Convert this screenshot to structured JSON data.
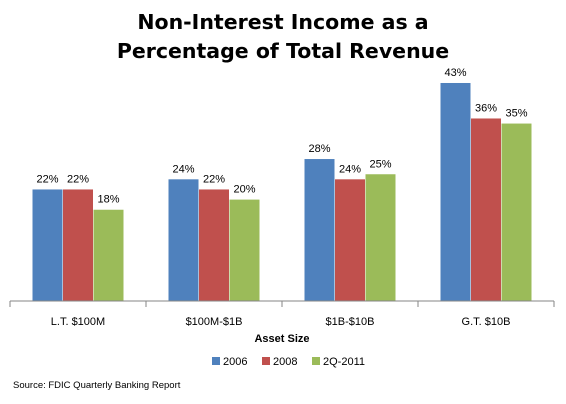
{
  "chart_data": {
    "type": "bar",
    "title_lines": [
      "Non-Interest Income as a",
      "Percentage of Total Revenue"
    ],
    "xlabel": "Asset Size",
    "ylabel": "",
    "categories": [
      "L.T. $100M",
      "$100M-$1B",
      "$1B-$10B",
      "G.T. $10B"
    ],
    "series": [
      {
        "name": "2006",
        "values": [
          22,
          24,
          28,
          43
        ],
        "labels": [
          "22%",
          "24%",
          "28%",
          "43%"
        ],
        "color": "#4F81BD"
      },
      {
        "name": "2008",
        "values": [
          22,
          22,
          24,
          36
        ],
        "labels": [
          "22%",
          "22%",
          "24%",
          "36%"
        ],
        "color": "#C0504D"
      },
      {
        "name": "2Q-2011",
        "values": [
          18,
          20,
          25,
          35
        ],
        "labels": [
          "18%",
          "20%",
          "25%",
          "35%"
        ],
        "color": "#9BBB59"
      }
    ],
    "ylim": [
      0,
      45
    ],
    "grid": false,
    "legend_position": "bottom"
  },
  "source": "Source: FDIC Quarterly Banking Report"
}
